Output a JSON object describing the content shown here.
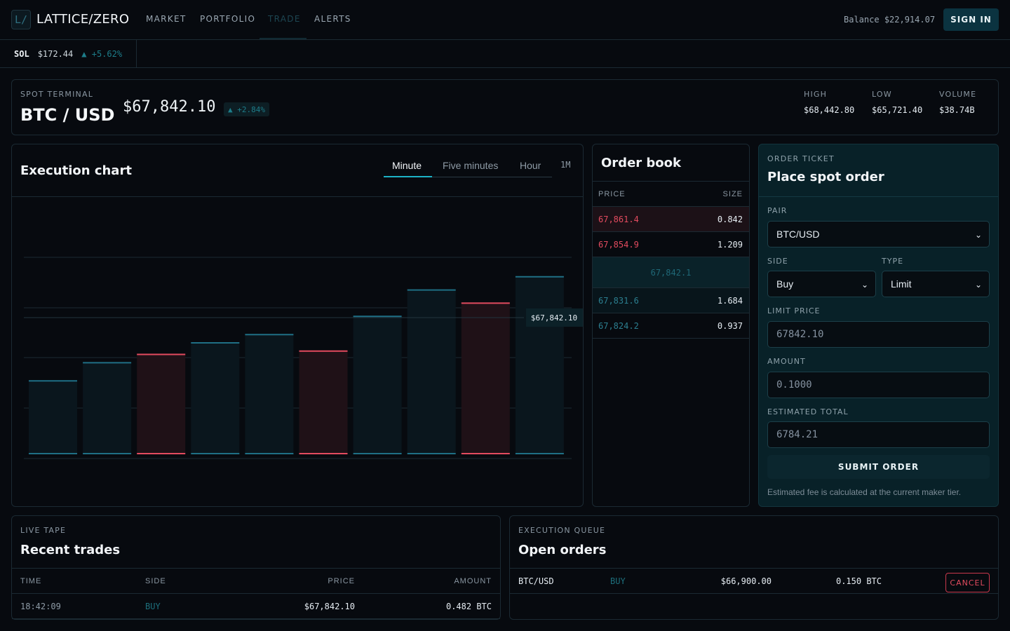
{
  "app": {
    "logo_glyph": "L/",
    "name": "LATTICE/ZERO"
  },
  "nav": {
    "items": [
      "MARKET",
      "PORTFOLIO",
      "TRADE",
      "ALERTS"
    ],
    "active": "TRADE"
  },
  "account": {
    "balance_label": "Balance",
    "balance_value": "$22,914.07",
    "signin_label": "SIGN IN"
  },
  "ticker": {
    "symbol": "SOL",
    "price": "$172.44",
    "change": "▲ +5.62%"
  },
  "header": {
    "eyebrow": "SPOT TERMINAL",
    "pair": "BTC / USD",
    "price": "$67,842.10",
    "change": "▲ +2.84%",
    "stats": [
      {
        "label": "HIGH",
        "value": "$68,442.80"
      },
      {
        "label": "LOW",
        "value": "$65,721.40"
      },
      {
        "label": "VOLUME",
        "value": "$38.74B"
      }
    ]
  },
  "chart": {
    "title": "Execution chart",
    "tabs": [
      "Minute",
      "Five minutes",
      "Hour"
    ],
    "active_tab": "Minute",
    "extra_tab": "1M",
    "price_tag": "$67,842.10"
  },
  "chart_data": {
    "type": "bar",
    "direction": [
      "up",
      "up",
      "down",
      "up",
      "up",
      "down",
      "up",
      "up",
      "down",
      "up"
    ],
    "values": [
      44,
      55,
      60,
      67,
      72,
      62,
      83,
      99,
      91,
      107
    ],
    "ylim": [
      0,
      125
    ],
    "grid": true,
    "colors": {
      "up": "#1f6f85",
      "down": "#e34b5f",
      "up_fill": "#0a161d",
      "down_fill": "#1f1117"
    }
  },
  "orderbook": {
    "title": "Order book",
    "col_price": "PRICE",
    "col_size": "SIZE",
    "asks": [
      {
        "price": "67,861.4",
        "size": "0.842"
      },
      {
        "price": "67,854.9",
        "size": "1.209"
      }
    ],
    "spread": "67,842.1",
    "bids": [
      {
        "price": "67,831.6",
        "size": "1.684"
      },
      {
        "price": "67,824.2",
        "size": "0.937"
      }
    ]
  },
  "ticket": {
    "eyebrow": "ORDER TICKET",
    "title": "Place spot order",
    "pair_label": "PAIR",
    "pair_value": "BTC/USD",
    "side_label": "SIDE",
    "side_value": "Buy",
    "type_label": "TYPE",
    "type_value": "Limit",
    "limit_label": "LIMIT PRICE",
    "limit_value": "67842.10",
    "amount_label": "AMOUNT",
    "amount_value": "0.1000",
    "total_label": "ESTIMATED TOTAL",
    "total_value": "6784.21",
    "submit_label": "SUBMIT ORDER",
    "fee_note": "Estimated fee is calculated at the current maker tier."
  },
  "trades": {
    "eyebrow": "LIVE TAPE",
    "title": "Recent trades",
    "columns": [
      "TIME",
      "SIDE",
      "PRICE",
      "AMOUNT"
    ],
    "rows": [
      {
        "time": "18:42:09",
        "side": "BUY",
        "price": "$67,842.10",
        "amount": "0.482 BTC"
      }
    ]
  },
  "orders": {
    "eyebrow": "EXECUTION QUEUE",
    "title": "Open orders",
    "rows": [
      {
        "pair": "BTC/USD",
        "side": "BUY",
        "price": "$66,900.00",
        "amount": "0.150 BTC",
        "action": "CANCEL"
      }
    ]
  }
}
